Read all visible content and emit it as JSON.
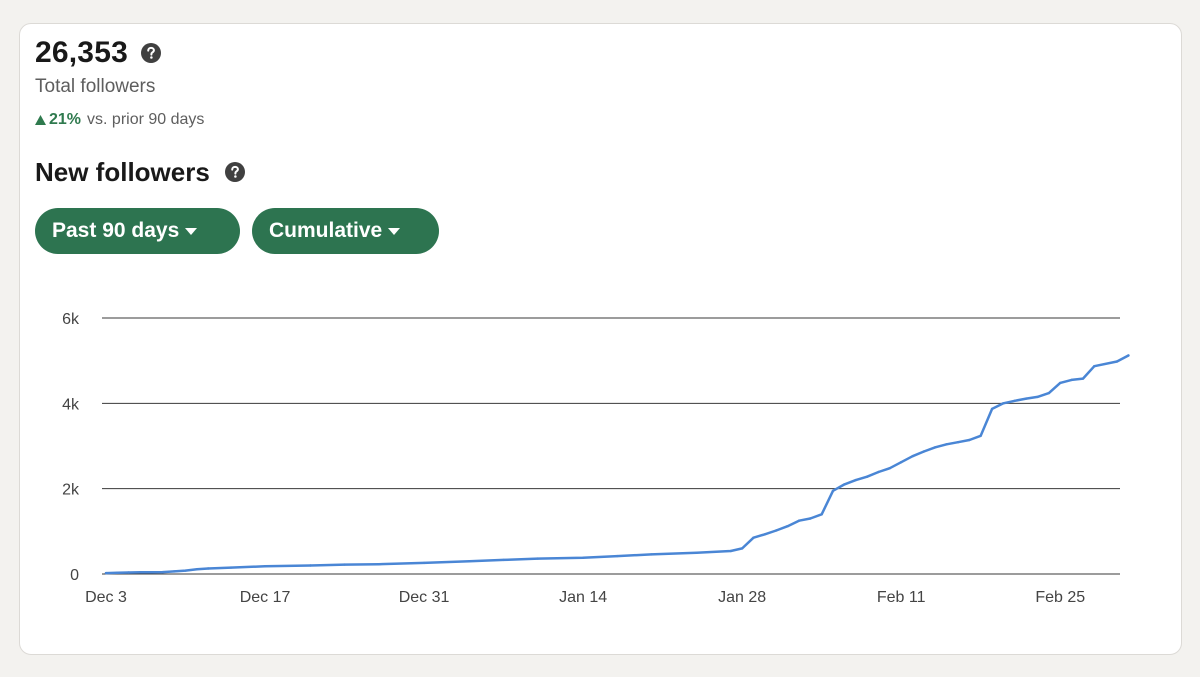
{
  "summary": {
    "total_value": "26,353",
    "total_label": "Total followers",
    "change_pct": "21%",
    "change_text": "vs. prior 90 days",
    "change_direction": "up"
  },
  "section": {
    "title": "New followers"
  },
  "filters": {
    "range_label": "Past 90 days",
    "mode_label": "Cumulative"
  },
  "icons": {
    "help": "question-circle-icon",
    "trend": "triangle-up-icon",
    "dropdown": "caret-down-icon"
  },
  "colors": {
    "accent": "#2d7450",
    "positive": "#2f7a4e",
    "line": "#4a86d5",
    "card": "#ffffff",
    "background": "#f3f2ef"
  },
  "chart_data": {
    "type": "line",
    "title": "",
    "xlabel": "",
    "ylabel": "",
    "ylim": [
      0,
      6000
    ],
    "yticks": [
      0,
      2000,
      4000,
      6000
    ],
    "ytick_labels": [
      "0",
      "2k",
      "4k",
      "6k"
    ],
    "xticks": [
      "Dec 3",
      "Dec 17",
      "Dec 31",
      "Jan 14",
      "Jan 28",
      "Feb 11",
      "Feb 25"
    ],
    "grid": "horizontal",
    "legend": "none",
    "series": [
      {
        "x": [
          "Dec 3",
          "Dec 4",
          "Dec 5",
          "Dec 6",
          "Dec 7",
          "Dec 8",
          "Dec 9",
          "Dec 10",
          "Dec 11",
          "Dec 12",
          "Dec 14",
          "Dec 17",
          "Dec 21",
          "Dec 24",
          "Dec 27",
          "Dec 31",
          "Jan 4",
          "Jan 7",
          "Jan 10",
          "Jan 14",
          "Jan 17",
          "Jan 20",
          "Jan 24",
          "Jan 27",
          "Jan 28",
          "Jan 29",
          "Jan 30",
          "Jan 31",
          "Feb 1",
          "Feb 2",
          "Feb 3",
          "Feb 4",
          "Feb 5",
          "Feb 6",
          "Feb 7",
          "Feb 8",
          "Feb 9",
          "Feb 10",
          "Feb 11",
          "Feb 12",
          "Feb 13",
          "Feb 14",
          "Feb 15",
          "Feb 16",
          "Feb 17",
          "Feb 18",
          "Feb 19",
          "Feb 20",
          "Feb 21",
          "Feb 22",
          "Feb 23",
          "Feb 24",
          "Feb 25",
          "Feb 26",
          "Feb 27",
          "Feb 28",
          "Mar 1",
          "Mar 2"
        ],
        "values": [
          20,
          30,
          35,
          40,
          40,
          45,
          60,
          80,
          110,
          130,
          150,
          180,
          200,
          220,
          230,
          260,
          300,
          330,
          360,
          380,
          420,
          460,
          500,
          540,
          600,
          850,
          930,
          1020,
          1120,
          1250,
          1300,
          1400,
          1950,
          2100,
          2200,
          2280,
          2390,
          2480,
          2620,
          2760,
          2870,
          2970,
          3040,
          3090,
          3140,
          3240,
          3870,
          4000,
          4060,
          4110,
          4150,
          4240,
          4480,
          4550,
          4580,
          4870,
          4980,
          5120
        ]
      }
    ]
  }
}
